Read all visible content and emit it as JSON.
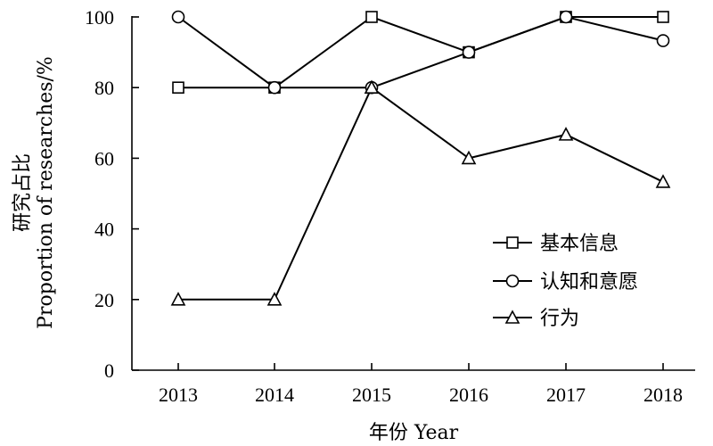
{
  "chart_data": {
    "type": "line",
    "x": [
      2013,
      2014,
      2015,
      2016,
      2017,
      2018
    ],
    "categories": [
      "2013",
      "2014",
      "2015",
      "2016",
      "2017",
      "2018"
    ],
    "ylim": [
      0,
      100
    ],
    "yticks": [
      "0",
      "20",
      "40",
      "60",
      "80",
      "100"
    ],
    "xlabel": "年份 Year",
    "ylabel_zh": "研究占比",
    "ylabel_en": "Proportion of researches/%",
    "grid": false,
    "legend_position": "right",
    "series": [
      {
        "name": "基本信息",
        "marker": "square",
        "values": [
          80,
          80,
          100,
          90,
          100,
          100
        ]
      },
      {
        "name": "认知和意愿",
        "marker": "circle",
        "values": [
          100,
          80,
          80,
          90,
          100,
          93.3
        ]
      },
      {
        "name": "行为",
        "marker": "triangle",
        "values": [
          20,
          20,
          80,
          60,
          66.7,
          53.3
        ]
      }
    ],
    "colors": {
      "line": "#000000",
      "marker_fill": "#ffffff",
      "background": "#ffffff"
    }
  }
}
